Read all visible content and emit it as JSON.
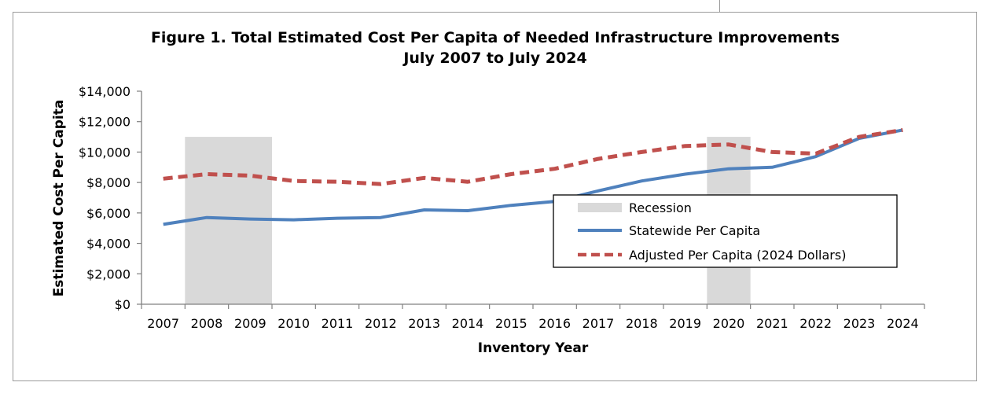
{
  "chart_data": {
    "type": "line",
    "title_line1": "Figure 1. Total Estimated Cost Per Capita of Needed Infrastructure Improvements",
    "title_line2": "July 2007 to July 2024",
    "xlabel": "Inventory Year",
    "ylabel": "Estimated Cost Per Capita",
    "x": [
      "2007",
      "2008",
      "2009",
      "2010",
      "2011",
      "2012",
      "2013",
      "2014",
      "2015",
      "2016",
      "2017",
      "2018",
      "2019",
      "2020",
      "2021",
      "2022",
      "2023",
      "2024"
    ],
    "ylim": [
      0,
      14000
    ],
    "y_ticks": [
      0,
      2000,
      4000,
      6000,
      8000,
      10000,
      12000,
      14000
    ],
    "y_tick_labels": [
      "$0",
      "$2,000",
      "$4,000",
      "$6,000",
      "$8,000",
      "$10,000",
      "$12,000",
      "$14,000"
    ],
    "series": [
      {
        "name": "Statewide Per Capita",
        "color": "#4f81bd",
        "style": "solid",
        "values": [
          5250,
          5700,
          5600,
          5550,
          5650,
          5700,
          6200,
          6150,
          6500,
          6750,
          7450,
          8100,
          8550,
          8900,
          9000,
          9700,
          10900,
          11450
        ]
      },
      {
        "name": "Adjusted Per Capita (2024 Dollars)",
        "color": "#c0504d",
        "style": "dashed",
        "values": [
          8250,
          8550,
          8450,
          8100,
          8050,
          7900,
          8300,
          8050,
          8550,
          8900,
          9550,
          10000,
          10400,
          10500,
          10000,
          9900,
          11000,
          11450
        ]
      }
    ],
    "recessions": [
      {
        "label": "Recession",
        "start": "2008",
        "end": "2009",
        "height": 11000
      },
      {
        "label": "Recession",
        "start": "2020",
        "end": "2020",
        "height": 11000
      }
    ],
    "recession_color": "#d9d9d9",
    "legend": {
      "placement": "center-right",
      "entries": [
        "Recession",
        "Statewide Per Capita",
        "Adjusted Per Capita (2024 Dollars)"
      ]
    }
  }
}
